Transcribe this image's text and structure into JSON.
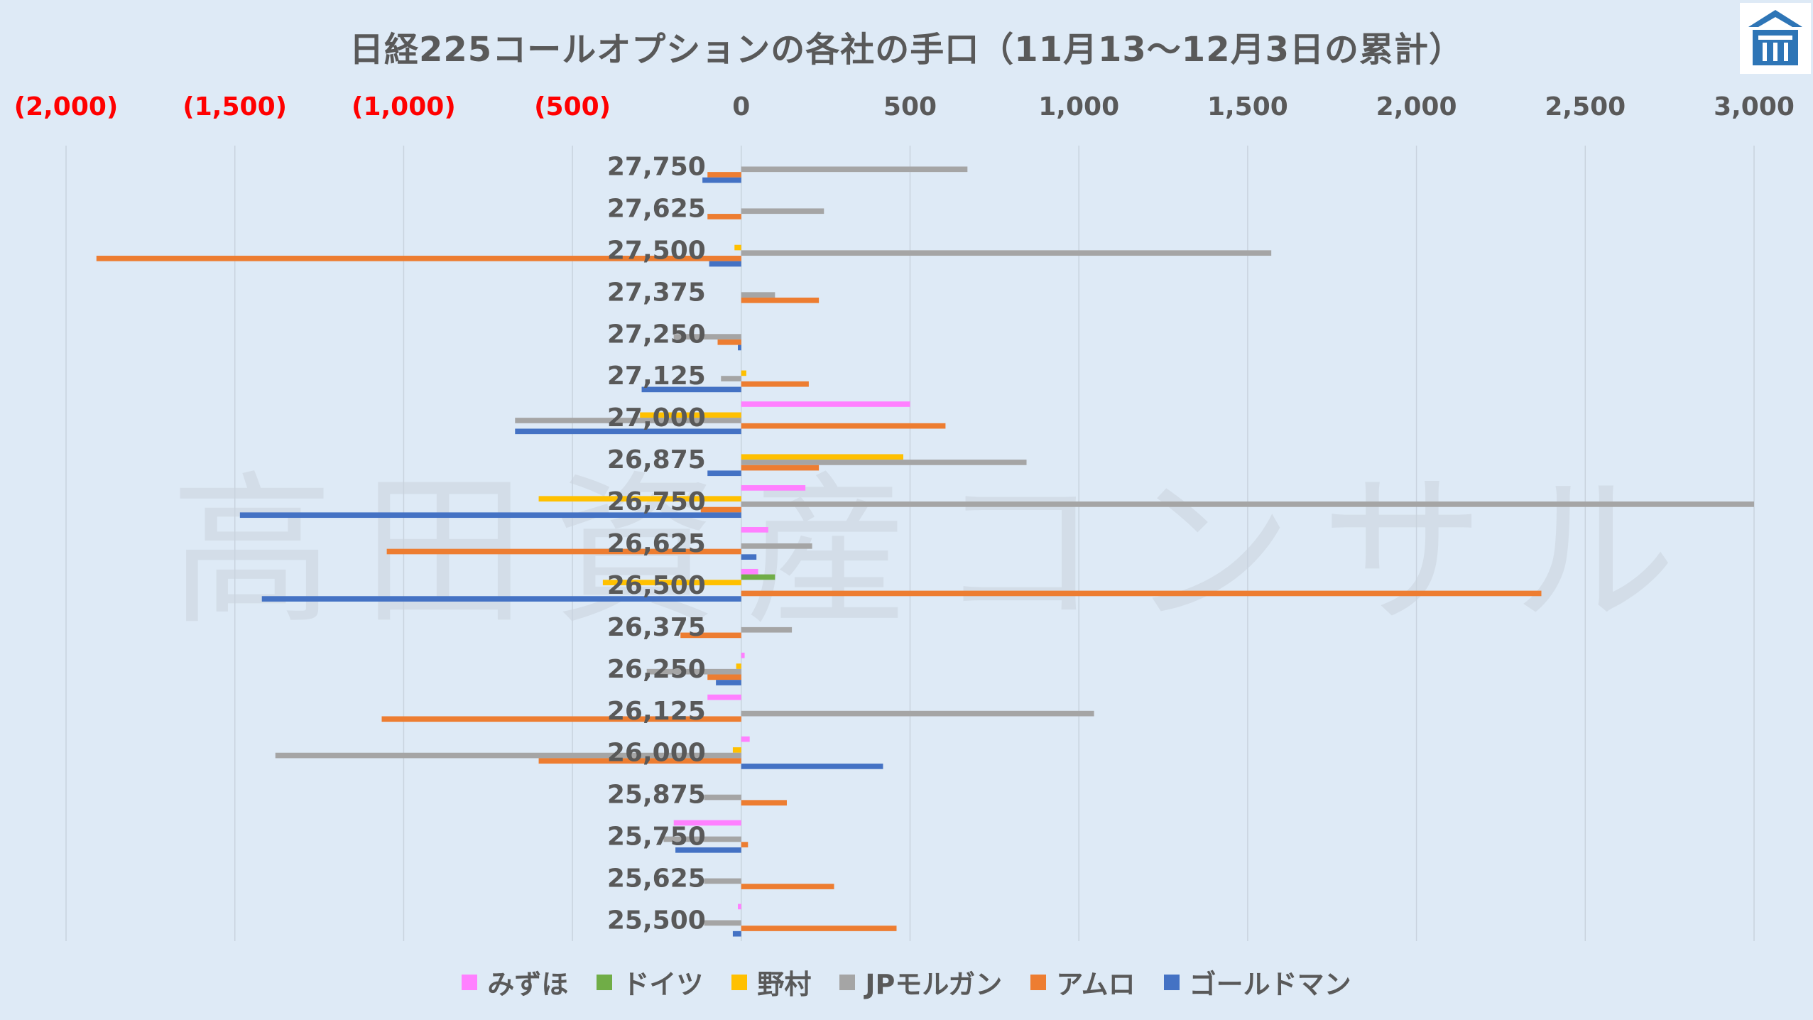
{
  "chart_data": {
    "type": "bar",
    "orientation": "horizontal",
    "title": "日経225コールオプションの各社の手口（11月13〜12月3日の累計）",
    "xlim": [
      -2000,
      3000
    ],
    "x_ticks": [
      -2000,
      -1500,
      -1000,
      -500,
      0,
      500,
      1000,
      1500,
      2000,
      2500,
      3000
    ],
    "x_tick_labels": [
      "(2,000)",
      "(1,500)",
      "(1,000)",
      "(500)",
      "0",
      "500",
      "1,000",
      "1,500",
      "2,000",
      "2,500",
      "3,000"
    ],
    "negative_tick_color": "#ff0000",
    "categories": [
      "27,750",
      "27,625",
      "27,500",
      "27,375",
      "27,250",
      "27,125",
      "27,000",
      "26,875",
      "26,750",
      "26,625",
      "26,500",
      "26,375",
      "26,250",
      "26,125",
      "26,000",
      "25,875",
      "25,750",
      "25,625",
      "25,500"
    ],
    "series": [
      {
        "name": "みずほ",
        "color": "#ff80ff",
        "values": [
          0,
          0,
          0,
          0,
          0,
          0,
          500,
          0,
          190,
          80,
          50,
          0,
          10,
          -100,
          25,
          0,
          -200,
          0,
          -10
        ]
      },
      {
        "name": "ドイツ",
        "color": "#70ad47",
        "values": [
          0,
          0,
          0,
          0,
          0,
          0,
          0,
          0,
          0,
          0,
          100,
          0,
          0,
          0,
          0,
          0,
          0,
          0,
          0
        ]
      },
      {
        "name": "野村",
        "color": "#ffc000",
        "values": [
          0,
          0,
          -20,
          0,
          0,
          15,
          -300,
          480,
          -600,
          0,
          -410,
          0,
          -15,
          0,
          -25,
          0,
          0,
          0,
          0
        ]
      },
      {
        "name": "JPモルガン",
        "color": "#a5a5a5",
        "values": [
          670,
          245,
          1570,
          100,
          -200,
          -60,
          -670,
          845,
          3000,
          210,
          0,
          150,
          -280,
          1045,
          -1380,
          -110,
          -230,
          -110,
          -110
        ]
      },
      {
        "name": "アムロ",
        "color": "#ed7d31",
        "values": [
          -100,
          -100,
          -1910,
          230,
          -70,
          200,
          605,
          230,
          -120,
          -1050,
          2370,
          -180,
          -100,
          -1065,
          -600,
          135,
          20,
          275,
          460
        ]
      },
      {
        "name": "ゴールドマン",
        "color": "#4472c4",
        "values": [
          -115,
          0,
          -95,
          0,
          -10,
          -295,
          -670,
          -100,
          -1485,
          45,
          -1420,
          0,
          -75,
          0,
          420,
          0,
          -195,
          0,
          -25
        ]
      }
    ],
    "grid": true,
    "legend_position": "bottom"
  },
  "watermark": "高田資産コンサル",
  "logo_icon": "takada-logo-icon"
}
